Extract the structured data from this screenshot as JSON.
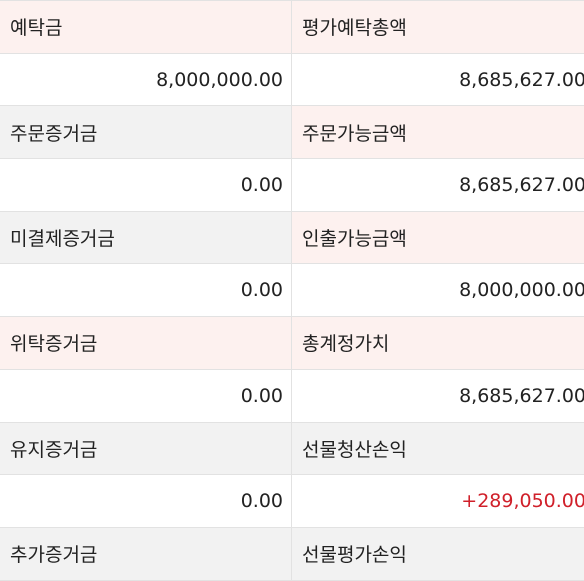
{
  "rows": [
    {
      "left": {
        "label": "예탁금",
        "value": "8,000,000.00"
      },
      "right": {
        "label": "평가예탁총액",
        "value": "8,685,627.00"
      }
    },
    {
      "left": {
        "label": "주문증거금",
        "value": "0.00"
      },
      "right": {
        "label": "주문가능금액",
        "value": "8,685,627.00"
      }
    },
    {
      "left": {
        "label": "미결제증거금",
        "value": "0.00"
      },
      "right": {
        "label": "인출가능금액",
        "value": "8,000,000.00"
      }
    },
    {
      "left": {
        "label": "위탁증거금",
        "value": "0.00"
      },
      "right": {
        "label": "총계정가치",
        "value": "8,685,627.00"
      }
    },
    {
      "left": {
        "label": "유지증거금",
        "value": "0.00"
      },
      "right": {
        "label": "선물청산손익",
        "value": "+289,050.00"
      }
    },
    {
      "left": {
        "label": "추가증거금",
        "value": ""
      },
      "right": {
        "label": "선물평가손익",
        "value": ""
      }
    }
  ],
  "colors": {
    "label_gray_bg": "#f2f2f2",
    "label_pink_bg": "#fdf1ef",
    "border": "#e2e2e2",
    "profit_red": "#d0202a"
  }
}
